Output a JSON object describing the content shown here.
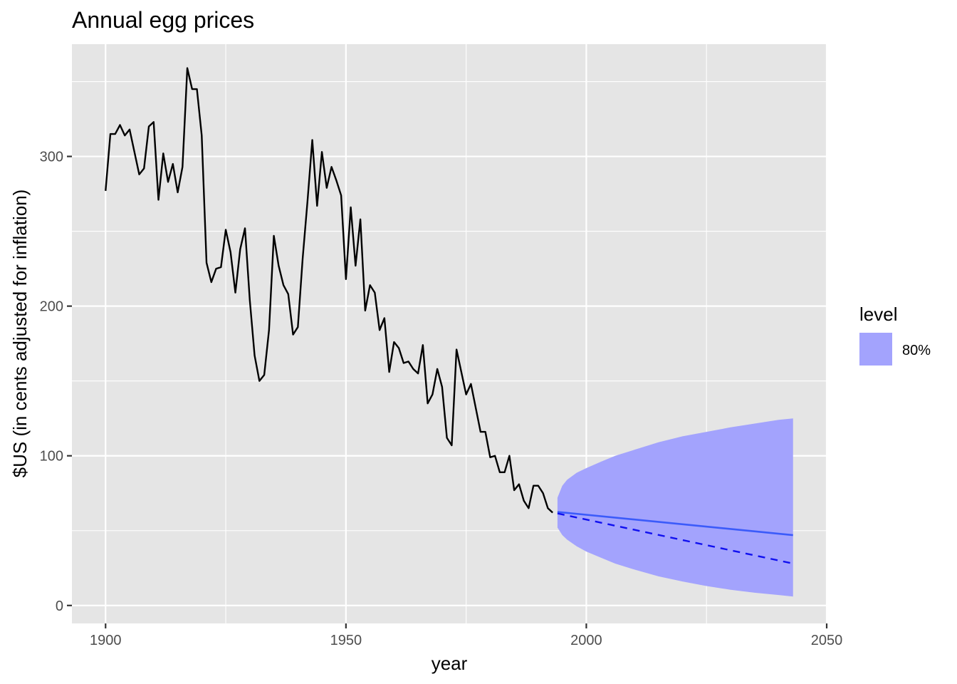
{
  "chart_data": {
    "type": "line",
    "title": "Annual egg prices",
    "xlabel": "year",
    "ylabel": "$US (in cents adjusted for inflation)",
    "xlim": [
      1893,
      2050
    ],
    "ylim": [
      -12,
      375
    ],
    "x_ticks": [
      1900,
      1950,
      2000,
      2050
    ],
    "x_minor_ticks": [
      1925,
      1975,
      2025
    ],
    "y_ticks": [
      0,
      100,
      200,
      300
    ],
    "y_minor_ticks": [
      50,
      150,
      250,
      350
    ],
    "grid": true,
    "colors": {
      "panel": "#e5e5e5",
      "grid": "#ffffff",
      "history": "#000000",
      "mean_forecast": "#3b5bfa",
      "median_forecast": "#1010f0",
      "interval": "#a3a3fd"
    },
    "series": [
      {
        "name": "history",
        "x": [
          1900,
          1901,
          1902,
          1903,
          1904,
          1905,
          1906,
          1907,
          1908,
          1909,
          1910,
          1911,
          1912,
          1913,
          1914,
          1915,
          1916,
          1917,
          1918,
          1919,
          1920,
          1921,
          1922,
          1923,
          1924,
          1925,
          1926,
          1927,
          1928,
          1929,
          1930,
          1931,
          1932,
          1933,
          1934,
          1935,
          1936,
          1937,
          1938,
          1939,
          1940,
          1941,
          1942,
          1943,
          1944,
          1945,
          1946,
          1947,
          1948,
          1949,
          1950,
          1951,
          1952,
          1953,
          1954,
          1955,
          1956,
          1957,
          1958,
          1959,
          1960,
          1961,
          1962,
          1963,
          1964,
          1965,
          1966,
          1967,
          1968,
          1969,
          1970,
          1971,
          1972,
          1973,
          1974,
          1975,
          1976,
          1977,
          1978,
          1979,
          1980,
          1981,
          1982,
          1983,
          1984,
          1985,
          1986,
          1987,
          1988,
          1989,
          1990,
          1991,
          1992,
          1993
        ],
        "values": [
          277,
          315,
          315,
          321,
          314,
          318,
          303,
          288,
          292,
          320,
          323,
          271,
          302,
          283,
          295,
          276,
          293,
          359,
          345,
          345,
          314,
          229,
          216,
          225,
          226,
          251,
          236,
          209,
          238,
          252,
          204,
          167,
          150,
          154,
          184,
          247,
          227,
          214,
          208,
          181,
          186,
          232,
          270,
          311,
          267,
          303,
          279,
          293,
          284,
          274,
          218,
          266,
          227,
          258,
          197,
          214,
          209,
          184,
          192,
          156,
          176,
          172,
          162,
          163,
          158,
          155,
          174,
          135,
          141,
          158,
          146,
          112,
          107,
          171,
          156,
          141,
          148,
          132,
          116,
          116,
          99,
          100,
          89,
          89,
          100,
          77,
          81,
          70,
          65,
          80,
          80,
          75,
          65,
          62
        ]
      },
      {
        "name": "forecast_mean",
        "x": [
          1994,
          2043
        ],
        "values": [
          62.5,
          47.0
        ]
      },
      {
        "name": "forecast_median",
        "x": [
          1994,
          2043
        ],
        "values": [
          61.5,
          28.0
        ]
      },
      {
        "name": "80%",
        "type": "area",
        "x": [
          1994,
          1995,
          1996,
          1998,
          2000,
          2003,
          2006,
          2010,
          2015,
          2020,
          2025,
          2030,
          2035,
          2040,
          2043
        ],
        "lower": [
          52,
          47,
          44,
          39.5,
          36,
          32,
          28,
          24,
          19.5,
          16,
          13,
          10.5,
          8.5,
          7,
          6
        ],
        "upper": [
          72,
          80,
          84,
          88.7,
          91.8,
          96,
          100,
          104,
          109,
          113,
          116,
          119,
          121.5,
          124,
          125
        ]
      }
    ],
    "legend": {
      "title": "level",
      "position": "right",
      "entries": [
        {
          "label": "80%",
          "color": "#a3a3fd"
        }
      ]
    }
  }
}
